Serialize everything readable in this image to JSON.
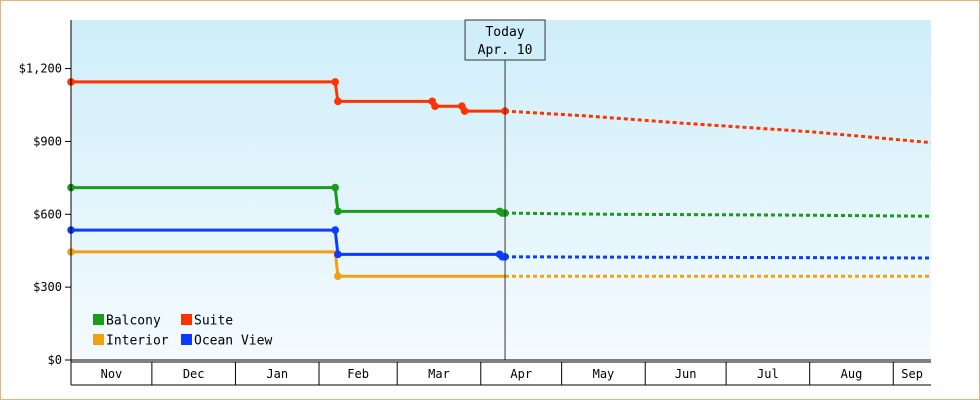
{
  "chart_data": {
    "type": "line",
    "title": "",
    "xlabel": "",
    "ylabel": "",
    "ylim": [
      0,
      1400
    ],
    "yticks": [
      {
        "value": 0,
        "label": "$0"
      },
      {
        "value": 300,
        "label": "$300"
      },
      {
        "value": 600,
        "label": "$600"
      },
      {
        "value": 900,
        "label": "$900"
      },
      {
        "value": 1200,
        "label": "$1,200"
      }
    ],
    "x_domain": [
      "2023-11-01",
      "2024-09-15"
    ],
    "month_labels": [
      {
        "start": "2023-11-01",
        "end": "2023-12-01",
        "label": "Nov"
      },
      {
        "start": "2023-12-01",
        "end": "2024-01-01",
        "label": "Dec"
      },
      {
        "start": "2024-01-01",
        "end": "2024-02-01",
        "label": "Jan"
      },
      {
        "start": "2024-02-01",
        "end": "2024-03-01",
        "label": "Feb"
      },
      {
        "start": "2024-03-01",
        "end": "2024-04-01",
        "label": "Mar"
      },
      {
        "start": "2024-04-01",
        "end": "2024-05-01",
        "label": "Apr"
      },
      {
        "start": "2024-05-01",
        "end": "2024-06-01",
        "label": "May"
      },
      {
        "start": "2024-06-01",
        "end": "2024-07-01",
        "label": "Jun"
      },
      {
        "start": "2024-07-01",
        "end": "2024-08-01",
        "label": "Jul"
      },
      {
        "start": "2024-08-01",
        "end": "2024-09-01",
        "label": "Aug"
      },
      {
        "start": "2024-09-01",
        "end": "2024-09-15",
        "label": "Sep"
      }
    ],
    "today": {
      "date": "2024-04-10",
      "label_line1": "Today",
      "label_line2": "Apr. 10"
    },
    "series": [
      {
        "name": "Balcony",
        "color": "#1a9b1a",
        "history": [
          [
            "2023-11-01",
            710
          ],
          [
            "2024-02-07",
            710
          ],
          [
            "2024-02-08",
            612
          ],
          [
            "2024-04-08",
            612
          ],
          [
            "2024-04-09",
            605
          ],
          [
            "2024-04-10",
            605
          ]
        ],
        "markers": [
          [
            "2023-11-01",
            710
          ],
          [
            "2024-02-07",
            710
          ],
          [
            "2024-02-08",
            612
          ],
          [
            "2024-04-08",
            612
          ],
          [
            "2024-04-09",
            605
          ],
          [
            "2024-04-10",
            605
          ]
        ],
        "forecast": [
          [
            "2024-04-10",
            605
          ],
          [
            "2024-05-20",
            600
          ],
          [
            "2024-07-20",
            597
          ],
          [
            "2024-09-15",
            592
          ]
        ]
      },
      {
        "name": "Suite",
        "color": "#ff3300",
        "history": [
          [
            "2023-11-01",
            1145
          ],
          [
            "2024-02-07",
            1145
          ],
          [
            "2024-02-08",
            1065
          ],
          [
            "2024-03-14",
            1065
          ],
          [
            "2024-03-15",
            1045
          ],
          [
            "2024-03-25",
            1045
          ],
          [
            "2024-03-26",
            1025
          ],
          [
            "2024-04-10",
            1025
          ]
        ],
        "markers": [
          [
            "2023-11-01",
            1145
          ],
          [
            "2024-02-07",
            1145
          ],
          [
            "2024-02-08",
            1065
          ],
          [
            "2024-03-14",
            1065
          ],
          [
            "2024-03-15",
            1045
          ],
          [
            "2024-03-25",
            1045
          ],
          [
            "2024-03-26",
            1025
          ],
          [
            "2024-04-10",
            1025
          ]
        ],
        "forecast": [
          [
            "2024-04-10",
            1025
          ],
          [
            "2024-05-10",
            1005
          ],
          [
            "2024-06-15",
            975
          ],
          [
            "2024-08-01",
            940
          ],
          [
            "2024-09-15",
            895
          ]
        ]
      },
      {
        "name": "Interior",
        "color": "#f0a010",
        "history": [
          [
            "2023-11-01",
            445
          ],
          [
            "2024-02-07",
            445
          ],
          [
            "2024-02-08",
            345
          ],
          [
            "2024-04-10",
            345
          ]
        ],
        "markers": [
          [
            "2023-11-01",
            445
          ],
          [
            "2024-02-08",
            345
          ]
        ],
        "forecast": [
          [
            "2024-04-10",
            345
          ],
          [
            "2024-09-15",
            345
          ]
        ]
      },
      {
        "name": "Ocean View",
        "color": "#0a3cff",
        "history": [
          [
            "2023-11-01",
            535
          ],
          [
            "2024-02-07",
            535
          ],
          [
            "2024-02-08",
            435
          ],
          [
            "2024-04-08",
            435
          ],
          [
            "2024-04-09",
            425
          ],
          [
            "2024-04-10",
            425
          ]
        ],
        "markers": [
          [
            "2023-11-01",
            535
          ],
          [
            "2024-02-07",
            535
          ],
          [
            "2024-02-08",
            435
          ],
          [
            "2024-04-08",
            435
          ],
          [
            "2024-04-09",
            425
          ],
          [
            "2024-04-10",
            425
          ]
        ],
        "forecast": [
          [
            "2024-04-10",
            425
          ],
          [
            "2024-09-15",
            420
          ]
        ]
      }
    ],
    "legend": {
      "placement": "bottom-left",
      "rows": [
        [
          "Balcony",
          "Suite"
        ],
        [
          "Interior",
          "Ocean View"
        ]
      ]
    },
    "background": {
      "top": "#cfeefa",
      "bottom": "#f4fbfe"
    },
    "grid": false
  }
}
